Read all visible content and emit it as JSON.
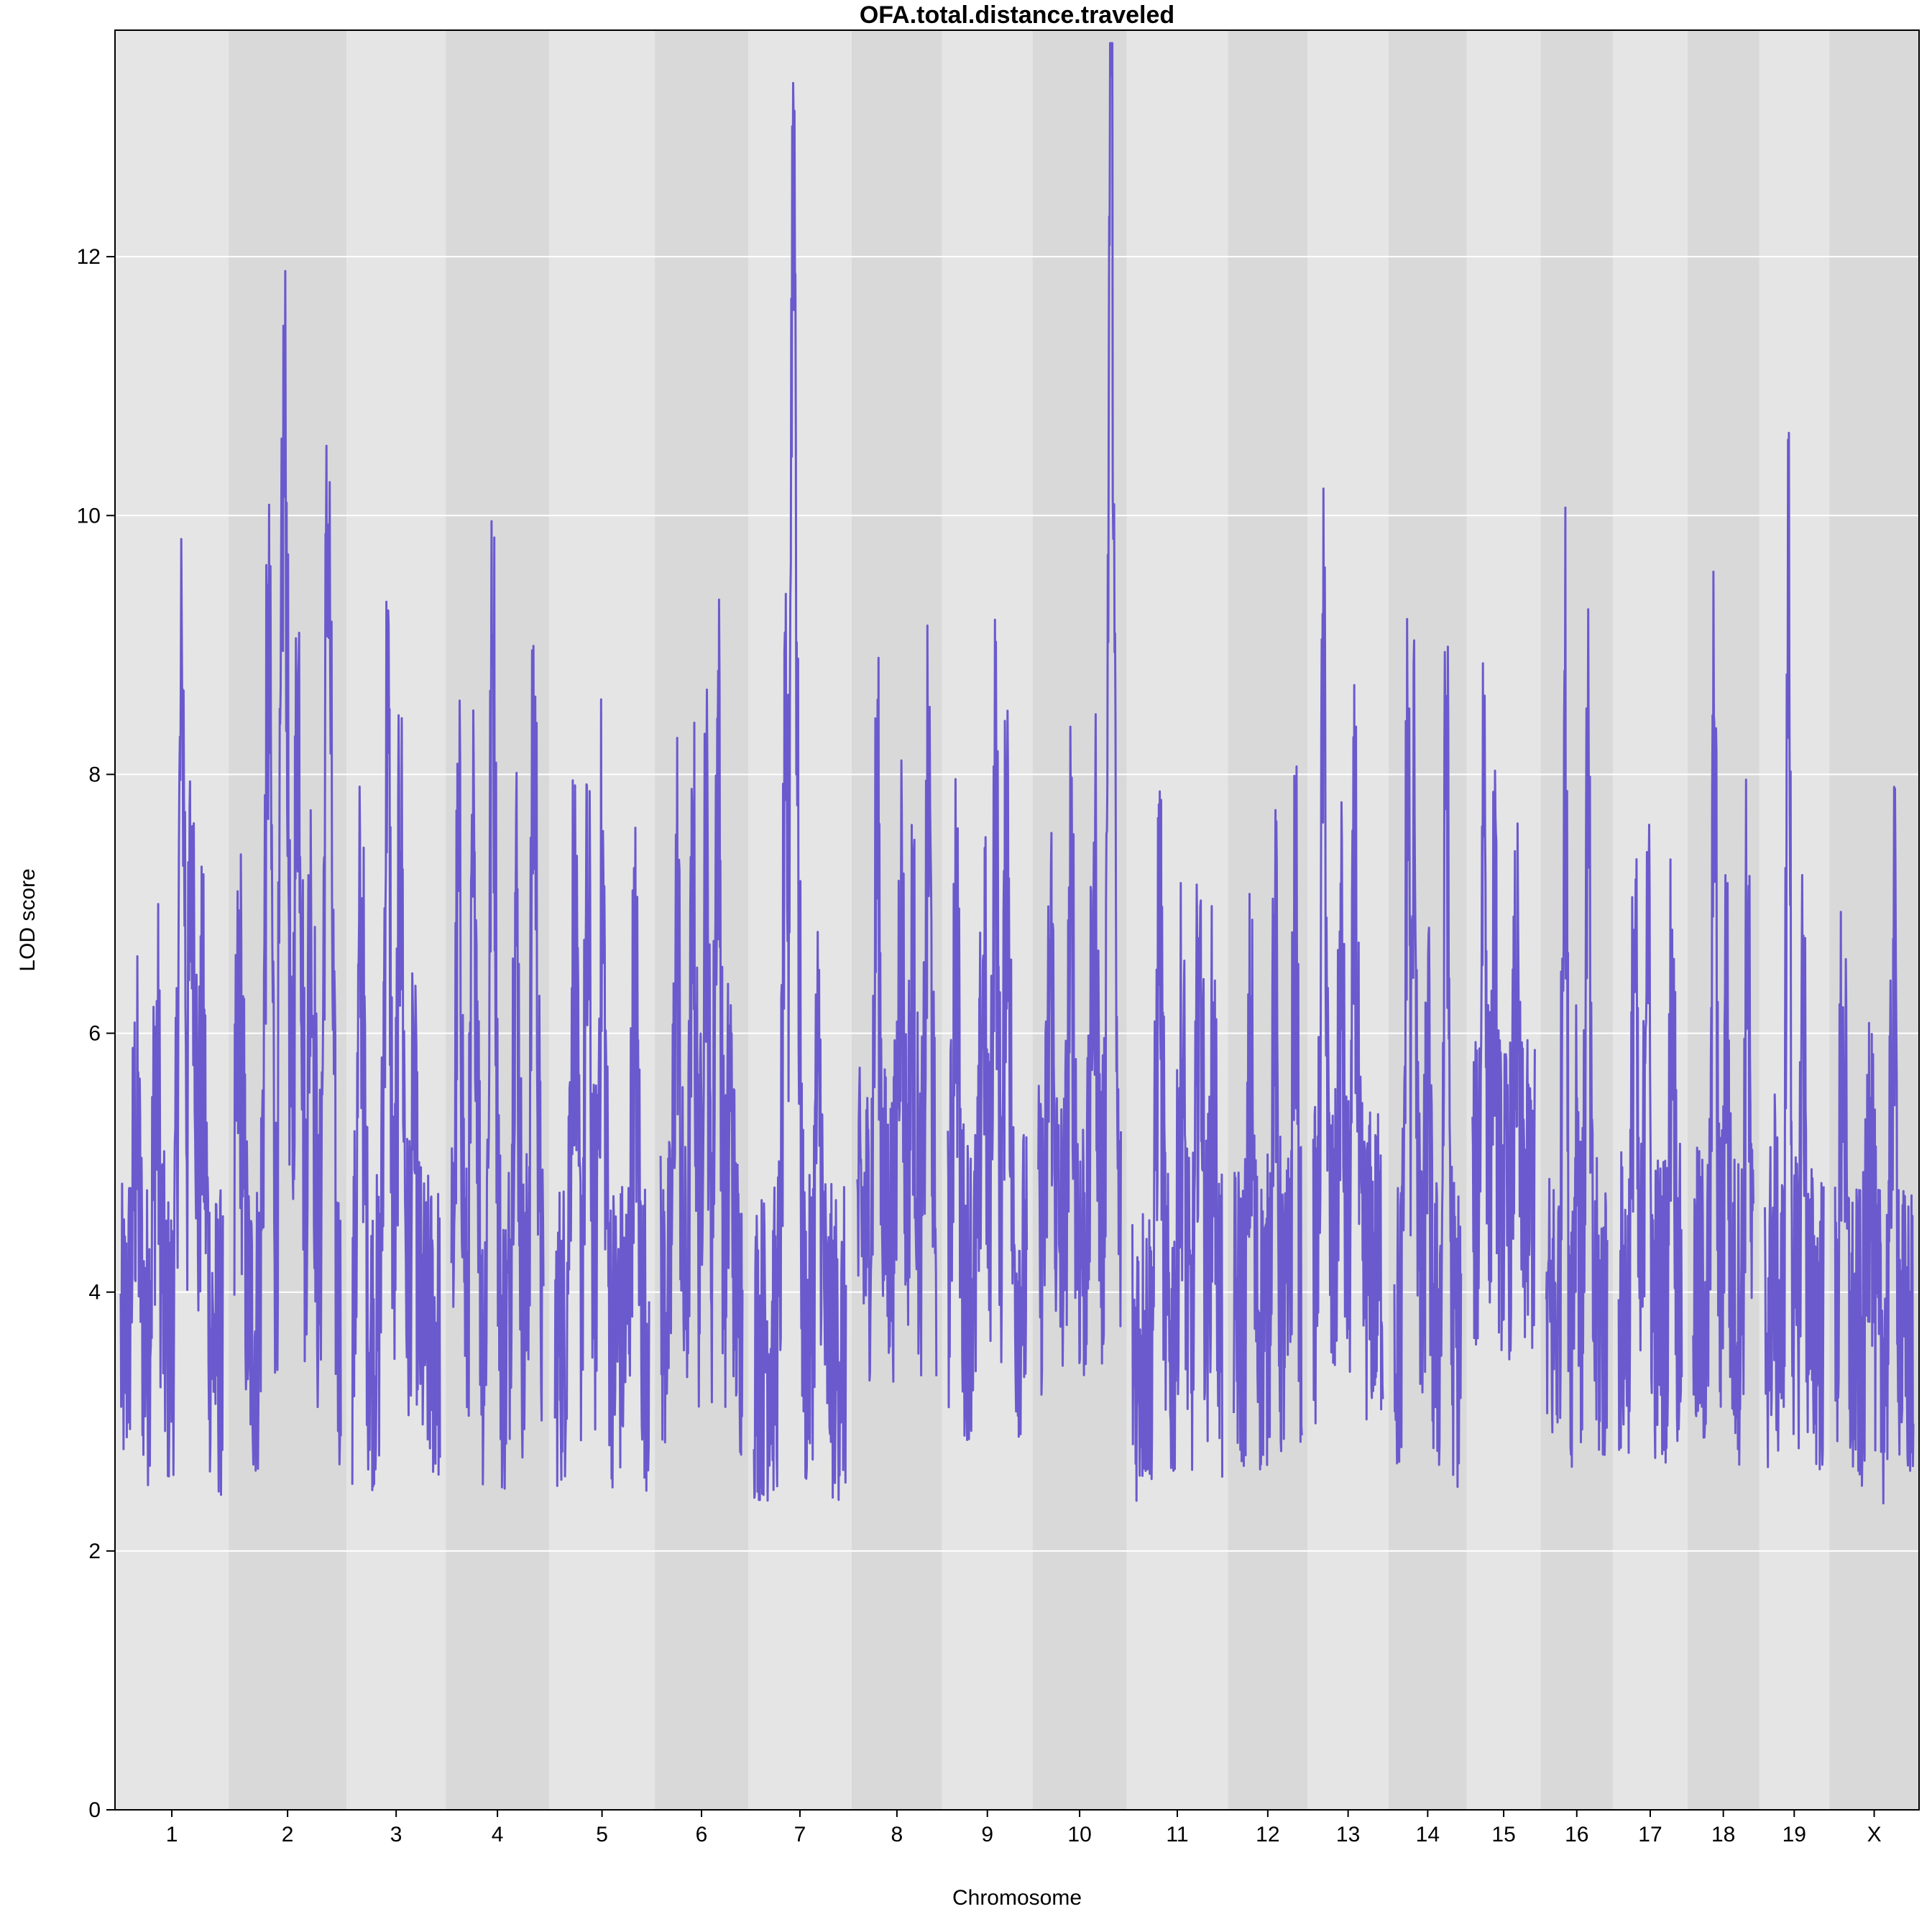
{
  "chart_data": {
    "type": "line",
    "title": "OFA.total.distance.traveled",
    "xlabel": "Chromosome",
    "ylabel": "LOD score",
    "ylim": [
      0,
      13.75
    ],
    "yticks": [
      0,
      2,
      4,
      6,
      8,
      10,
      12
    ],
    "grid": "horizontal",
    "series_color": "#6a5acd",
    "band_colors": [
      "#e5e5e5",
      "#d9d9d9"
    ],
    "chromosomes": [
      {
        "label": "1",
        "weight": 1.57,
        "base": 3.6,
        "peaks": [
          [
            0.6,
            8.5
          ],
          [
            0.7,
            7.6
          ],
          [
            0.35,
            5.7
          ],
          [
            0.15,
            5.2
          ],
          [
            0.8,
            5.7
          ]
        ]
      },
      {
        "label": "2",
        "weight": 1.63,
        "base": 3.7,
        "peaks": [
          [
            0.47,
            10.7
          ],
          [
            0.32,
            8.7
          ],
          [
            0.6,
            8.7
          ],
          [
            0.88,
            9.8
          ],
          [
            0.72,
            6.8
          ],
          [
            0.05,
            6.1
          ]
        ]
      },
      {
        "label": "3",
        "weight": 1.37,
        "base": 3.7,
        "peaks": [
          [
            0.4,
            8.4
          ],
          [
            0.1,
            6.8
          ],
          [
            0.55,
            7.4
          ],
          [
            0.7,
            5.1
          ]
        ]
      },
      {
        "label": "4",
        "weight": 1.43,
        "base": 3.6,
        "peaks": [
          [
            0.45,
            8.9
          ],
          [
            0.9,
            8.3
          ],
          [
            0.25,
            7.4
          ],
          [
            0.7,
            6.9
          ],
          [
            0.08,
            7.1
          ]
        ]
      },
      {
        "label": "5",
        "weight": 1.46,
        "base": 3.7,
        "peaks": [
          [
            0.5,
            7.1
          ],
          [
            0.2,
            6.8
          ],
          [
            0.35,
            6.7
          ],
          [
            0.85,
            6.2
          ]
        ]
      },
      {
        "label": "6",
        "weight": 1.29,
        "base": 3.9,
        "peaks": [
          [
            0.7,
            8.3
          ],
          [
            0.55,
            7.6
          ],
          [
            0.2,
            7.0
          ],
          [
            0.4,
            7.0
          ],
          [
            0.85,
            5.4
          ]
        ]
      },
      {
        "label": "7",
        "weight": 1.43,
        "base": 3.6,
        "peaks": [
          [
            0.43,
            13.1
          ],
          [
            0.46,
            8.0
          ],
          [
            0.35,
            7.8
          ],
          [
            0.7,
            5.7
          ]
        ]
      },
      {
        "label": "8",
        "weight": 1.25,
        "base": 4.5,
        "peaks": [
          [
            0.25,
            7.6
          ],
          [
            0.55,
            7.0
          ],
          [
            0.9,
            7.7
          ],
          [
            0.7,
            6.4
          ]
        ]
      },
      {
        "label": "9",
        "weight": 1.25,
        "base": 4.1,
        "peaks": [
          [
            0.6,
            7.9
          ],
          [
            0.75,
            7.8
          ],
          [
            0.45,
            6.6
          ],
          [
            0.1,
            7.0
          ]
        ]
      },
      {
        "label": "10",
        "weight": 1.3,
        "base": 4.4,
        "peaks": [
          [
            0.88,
            13.4
          ],
          [
            0.68,
            7.3
          ],
          [
            0.4,
            6.9
          ],
          [
            0.15,
            6.5
          ]
        ]
      },
      {
        "label": "11",
        "weight": 1.4,
        "base": 3.6,
        "peaks": [
          [
            0.3,
            6.7
          ],
          [
            0.75,
            6.7
          ],
          [
            0.55,
            5.8
          ],
          [
            0.9,
            5.6
          ]
        ]
      },
      {
        "label": "12",
        "weight": 1.1,
        "base": 3.8,
        "peaks": [
          [
            0.6,
            6.8
          ],
          [
            0.9,
            7.1
          ],
          [
            0.25,
            5.8
          ]
        ]
      },
      {
        "label": "13",
        "weight": 1.12,
        "base": 4.2,
        "peaks": [
          [
            0.15,
            9.0
          ],
          [
            0.6,
            7.3
          ],
          [
            0.4,
            6.5
          ]
        ]
      },
      {
        "label": "14",
        "weight": 1.08,
        "base": 3.7,
        "peaks": [
          [
            0.2,
            8.3
          ],
          [
            0.78,
            8.3
          ],
          [
            0.3,
            7.7
          ],
          [
            0.5,
            5.7
          ]
        ]
      },
      {
        "label": "15",
        "weight": 1.02,
        "base": 4.7,
        "peaks": [
          [
            0.18,
            8.2
          ],
          [
            0.35,
            6.7
          ],
          [
            0.7,
            6.4
          ]
        ]
      },
      {
        "label": "16",
        "weight": 1.0,
        "base": 3.8,
        "peaks": [
          [
            0.3,
            8.8
          ],
          [
            0.68,
            8.1
          ],
          [
            0.5,
            5.5
          ]
        ]
      },
      {
        "label": "17",
        "weight": 1.03,
        "base": 3.9,
        "peaks": [
          [
            0.45,
            7.4
          ],
          [
            0.25,
            6.8
          ],
          [
            0.85,
            6.8
          ]
        ]
      },
      {
        "label": "18",
        "weight": 0.99,
        "base": 3.9,
        "peaks": [
          [
            0.35,
            8.4
          ],
          [
            0.55,
            6.4
          ],
          [
            0.9,
            6.9
          ]
        ]
      },
      {
        "label": "19",
        "weight": 0.97,
        "base": 3.8,
        "peaks": [
          [
            0.4,
            9.3
          ],
          [
            0.65,
            6.5
          ],
          [
            0.15,
            4.4
          ]
        ]
      },
      {
        "label": "X",
        "weight": 1.24,
        "base": 3.6,
        "peaks": [
          [
            0.75,
            6.5
          ],
          [
            0.1,
            6.2
          ],
          [
            0.45,
            5.5
          ]
        ]
      }
    ]
  }
}
